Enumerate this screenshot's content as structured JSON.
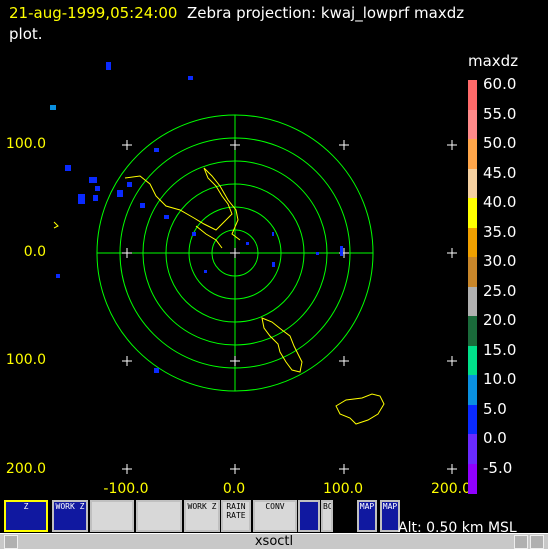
{
  "header": {
    "timestamp": "21-aug-1999,05:24:00",
    "title": "Zebra projection: kwaj_lowprf maxdz",
    "title_cont": "plot."
  },
  "plot": {
    "y_labels": [
      "100.0",
      "0.0",
      "100.0",
      "200.0"
    ],
    "x_labels": [
      "-100.0",
      "0.0",
      "100.0",
      "200.0"
    ],
    "ring_color": "#00ff00",
    "coast_color": "#ffff00",
    "echo_color": "#0a2aff"
  },
  "legend": {
    "title": "maxdz",
    "entries": [
      {
        "label": "60.0",
        "color": "#ff6a6a"
      },
      {
        "label": "55.0",
        "color": "#ff8a8a"
      },
      {
        "label": "50.0",
        "color": "#ffa64a"
      },
      {
        "label": "45.0",
        "color": "#f5d0a0"
      },
      {
        "label": "40.0",
        "color": "#ffff00"
      },
      {
        "label": "35.0",
        "color": "#f0a000"
      },
      {
        "label": "30.0",
        "color": "#c8862a"
      },
      {
        "label": "25.0",
        "color": "#b0b0b0"
      },
      {
        "label": "20.0",
        "color": "#1a6a3a"
      },
      {
        "label": "15.0",
        "color": "#00e08a"
      },
      {
        "label": "10.0",
        "color": "#0a90e0"
      },
      {
        "label": "5.0",
        "color": "#0a2aff"
      },
      {
        "label": "0.0",
        "color": "#6a2aff"
      },
      {
        "label": "-5.0",
        "color": "#9000ff"
      }
    ]
  },
  "iconbar": {
    "icons": [
      {
        "name": "zebra-icon",
        "label": "Z"
      },
      {
        "name": "work-z-icon",
        "label": "WORK Z"
      },
      {
        "name": "map-grid-icon",
        "label": ""
      },
      {
        "name": "sparkle-icon",
        "label": ""
      },
      {
        "name": "work-z2-icon",
        "label": "WORK Z"
      },
      {
        "name": "rain-rate-icon",
        "label": "RAIN RATE"
      },
      {
        "name": "conv-icon",
        "label": "CONV"
      },
      {
        "name": "globe-icon",
        "label": ""
      },
      {
        "name": "boundary-icon",
        "label": "BOUND"
      },
      {
        "name": "map-icon",
        "label": "MAP"
      },
      {
        "name": "usa-map-icon",
        "label": "MAP"
      }
    ],
    "alt_text": "Alt: 0.50 km MSL"
  },
  "xsoctl": {
    "label": "xsoctl"
  }
}
